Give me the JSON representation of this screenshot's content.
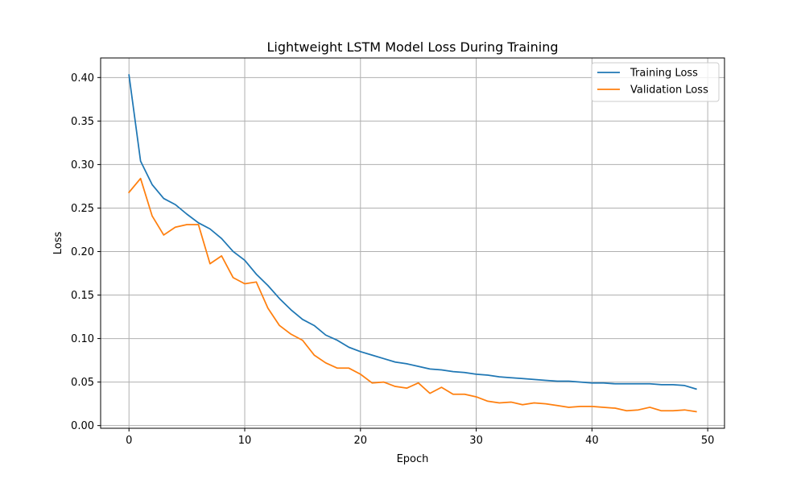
{
  "chart_data": {
    "type": "line",
    "title": "Lightweight LSTM Model Loss During Training",
    "xlabel": "Epoch",
    "ylabel": "Loss",
    "xlim": [
      -2.45,
      51.45
    ],
    "ylim": [
      -0.0031,
      0.4225
    ],
    "x_ticks": [
      0,
      10,
      20,
      30,
      40,
      50
    ],
    "y_ticks": [
      0.0,
      0.05,
      0.1,
      0.15,
      0.2,
      0.25,
      0.3,
      0.35,
      0.4
    ],
    "x_tick_labels": [
      "0",
      "10",
      "20",
      "30",
      "40",
      "50"
    ],
    "y_tick_labels": [
      "0.00",
      "0.05",
      "0.10",
      "0.15",
      "0.20",
      "0.25",
      "0.30",
      "0.35",
      "0.40"
    ],
    "grid": true,
    "legend_position": "upper right",
    "x": [
      0,
      1,
      2,
      3,
      4,
      5,
      6,
      7,
      8,
      9,
      10,
      11,
      12,
      13,
      14,
      15,
      16,
      17,
      18,
      19,
      20,
      21,
      22,
      23,
      24,
      25,
      26,
      27,
      28,
      29,
      30,
      31,
      32,
      33,
      34,
      35,
      36,
      37,
      38,
      39,
      40,
      41,
      42,
      43,
      44,
      45,
      46,
      47,
      48,
      49
    ],
    "series": [
      {
        "name": "Training Loss",
        "color": "#1f77b4",
        "values": [
          0.403,
          0.304,
          0.277,
          0.261,
          0.254,
          0.243,
          0.233,
          0.226,
          0.215,
          0.2,
          0.19,
          0.174,
          0.161,
          0.146,
          0.133,
          0.122,
          0.115,
          0.104,
          0.098,
          0.09,
          0.085,
          0.081,
          0.077,
          0.073,
          0.071,
          0.068,
          0.065,
          0.064,
          0.062,
          0.061,
          0.059,
          0.058,
          0.056,
          0.055,
          0.054,
          0.053,
          0.052,
          0.051,
          0.051,
          0.05,
          0.049,
          0.049,
          0.048,
          0.048,
          0.048,
          0.048,
          0.047,
          0.047,
          0.046,
          0.042
        ]
      },
      {
        "name": "Validation Loss",
        "color": "#ff7f0e",
        "values": [
          0.268,
          0.284,
          0.241,
          0.219,
          0.228,
          0.231,
          0.231,
          0.186,
          0.195,
          0.17,
          0.163,
          0.165,
          0.135,
          0.115,
          0.105,
          0.098,
          0.081,
          0.072,
          0.066,
          0.066,
          0.059,
          0.049,
          0.05,
          0.045,
          0.043,
          0.049,
          0.037,
          0.044,
          0.036,
          0.036,
          0.033,
          0.028,
          0.026,
          0.027,
          0.024,
          0.026,
          0.025,
          0.023,
          0.021,
          0.022,
          0.022,
          0.021,
          0.02,
          0.017,
          0.018,
          0.021,
          0.017,
          0.017,
          0.018,
          0.016
        ]
      }
    ]
  }
}
